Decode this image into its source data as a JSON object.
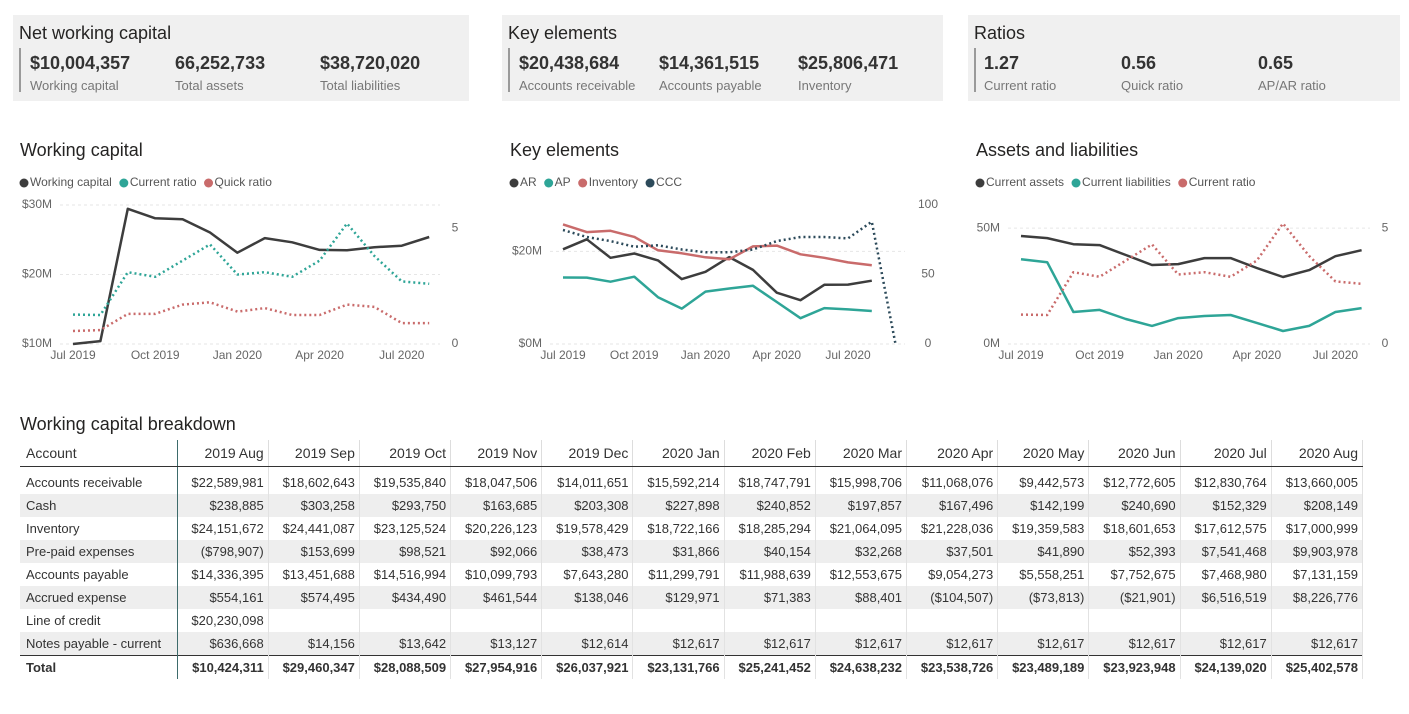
{
  "cards": [
    {
      "title": "Net working capital",
      "items": [
        {
          "value": "$10,004,357",
          "label": "Working capital"
        },
        {
          "value": "66,252,733",
          "label": "Total assets"
        },
        {
          "value": "$38,720,020",
          "label": "Total liabilities"
        }
      ]
    },
    {
      "title": "Key elements",
      "items": [
        {
          "value": "$20,438,684",
          "label": "Accounts receivable"
        },
        {
          "value": "$14,361,515",
          "label": "Accounts payable"
        },
        {
          "value": "$25,806,471",
          "label": "Inventory"
        }
      ]
    },
    {
      "title": "Ratios",
      "items": [
        {
          "value": "1.27",
          "label": "Current ratio"
        },
        {
          "value": "0.56",
          "label": "Quick ratio"
        },
        {
          "value": "0.65",
          "label": "AP/AR ratio"
        }
      ]
    }
  ],
  "chart_data": [
    {
      "type": "line",
      "title": "Working capital",
      "categories": [
        "Jul 2019",
        null,
        null,
        "Oct 2019",
        null,
        null,
        "Jan 2020",
        null,
        null,
        "Apr 2020",
        null,
        null,
        "Jul 2020",
        null
      ],
      "series": [
        {
          "name": "Working capital",
          "color": "#3d3d3d",
          "line_style": "solid",
          "values": [
            10004357,
            10424311,
            29460347,
            28088509,
            27954916,
            26037921,
            23131766,
            25241452,
            24638232,
            23538726,
            23489189,
            23923948,
            24139020,
            25402578
          ]
        },
        {
          "name": "Current ratio",
          "color": "#2ea597",
          "line_style": "dotted",
          "axis": "y2",
          "values": [
            1.27,
            1.25,
            3.1,
            2.9,
            3.6,
            4.3,
            3.0,
            3.1,
            2.9,
            3.6,
            5.2,
            3.8,
            2.7,
            2.6
          ]
        },
        {
          "name": "Quick ratio",
          "color": "#c96b6b",
          "line_style": "dotted",
          "axis": "y2",
          "values": [
            0.56,
            0.6,
            1.3,
            1.3,
            1.7,
            1.8,
            1.4,
            1.55,
            1.25,
            1.25,
            1.7,
            1.6,
            0.9,
            0.9
          ]
        }
      ],
      "ylim": [
        10000000,
        30000000
      ],
      "yticks": [
        {
          "value": 10000000,
          "label": "$10M"
        },
        {
          "value": 20000000,
          "label": "$20M"
        },
        {
          "value": 30000000,
          "label": "$30M"
        }
      ],
      "y2lim": [
        0,
        6
      ],
      "y2ticks": [
        0,
        5
      ],
      "grid": true,
      "legend": "top-left"
    },
    {
      "type": "line",
      "title": "Key elements",
      "categories": [
        "Jul 2019",
        null,
        null,
        "Oct 2019",
        null,
        null,
        "Jan 2020",
        null,
        null,
        "Apr 2020",
        null,
        null,
        "Jul 2020",
        null,
        null
      ],
      "series": [
        {
          "name": "AR",
          "color": "#3d3d3d",
          "line_style": "solid",
          "values": [
            20438684,
            22589981,
            18602643,
            19535840,
            18047506,
            14011651,
            15592214,
            18747791,
            15998706,
            11068076,
            9442573,
            12772605,
            12830764,
            13660005,
            null
          ]
        },
        {
          "name": "AP",
          "color": "#2ea597",
          "line_style": "solid",
          "values": [
            14361515,
            14336395,
            13451688,
            14516994,
            10099793,
            7643280,
            11299791,
            11988639,
            12553675,
            9054273,
            5558251,
            7752675,
            7468980,
            7131159,
            null
          ]
        },
        {
          "name": "Inventory",
          "color": "#c96b6b",
          "line_style": "solid",
          "values": [
            25806471,
            24151672,
            24441087,
            23125524,
            20226123,
            19578429,
            18722166,
            18285294,
            21064095,
            21228036,
            19359583,
            18601653,
            17612575,
            17000999,
            null
          ]
        },
        {
          "name": "CCC",
          "color": "#2c4a5a",
          "line_style": "dotted",
          "axis": "y2",
          "values": [
            82,
            77,
            74,
            70,
            71,
            68,
            66,
            66,
            68,
            74,
            77,
            77,
            76,
            88,
            0
          ]
        }
      ],
      "ylim": [
        0,
        30000000
      ],
      "yticks": [
        {
          "value": 0,
          "label": "$0M"
        },
        {
          "value": 20000000,
          "label": "$20M"
        }
      ],
      "y2lim": [
        0,
        100
      ],
      "y2ticks": [
        0,
        50,
        100
      ],
      "grid": true,
      "legend": "top-left"
    },
    {
      "type": "line",
      "title": "Assets and liabilities",
      "categories": [
        "Jul 2019",
        null,
        null,
        "Oct 2019",
        null,
        null,
        "Jan 2020",
        null,
        null,
        "Apr 2020",
        null,
        null,
        "Jul 2020",
        null
      ],
      "series": [
        {
          "name": "Current assets",
          "color": "#3d3d3d",
          "line_style": "solid",
          "values": [
            46600000,
            45700000,
            43100000,
            42700000,
            38400000,
            34100000,
            34500000,
            37100000,
            37100000,
            32800000,
            28900000,
            31900000,
            37900000,
            40500000
          ]
        },
        {
          "name": "Current liabilities",
          "color": "#2ea597",
          "line_style": "solid",
          "values": [
            36600000,
            35300000,
            13800000,
            14700000,
            10800000,
            7800000,
            11200000,
            12100000,
            12500000,
            9100000,
            5600000,
            7800000,
            13800000,
            15500000
          ]
        },
        {
          "name": "Current ratio",
          "color": "#c96b6b",
          "line_style": "dotted",
          "axis": "y2",
          "values": [
            1.27,
            1.25,
            3.1,
            2.9,
            3.6,
            4.3,
            3.0,
            3.1,
            2.9,
            3.6,
            5.2,
            3.8,
            2.7,
            2.6
          ]
        }
      ],
      "ylim": [
        0,
        60000000
      ],
      "yticks": [
        {
          "value": 0,
          "label": "0M"
        },
        {
          "value": 50000000,
          "label": "50M"
        }
      ],
      "y2lim": [
        0,
        6
      ],
      "y2ticks": [
        0,
        5
      ],
      "grid": true,
      "legend": "top-left"
    }
  ],
  "table": {
    "title": "Working capital breakdown",
    "columns": [
      "Account",
      "2019 Aug",
      "2019 Sep",
      "2019 Oct",
      "2019 Nov",
      "2019 Dec",
      "2020 Jan",
      "2020 Feb",
      "2020 Mar",
      "2020 Apr",
      "2020 May",
      "2020 Jun",
      "2020 Jul",
      "2020 Aug"
    ],
    "rows": [
      [
        "Accounts receivable",
        "$22,589,981",
        "$18,602,643",
        "$19,535,840",
        "$18,047,506",
        "$14,011,651",
        "$15,592,214",
        "$18,747,791",
        "$15,998,706",
        "$11,068,076",
        "$9,442,573",
        "$12,772,605",
        "$12,830,764",
        "$13,660,005"
      ],
      [
        "Cash",
        "$238,885",
        "$303,258",
        "$293,750",
        "$163,685",
        "$203,308",
        "$227,898",
        "$240,852",
        "$197,857",
        "$167,496",
        "$142,199",
        "$240,690",
        "$152,329",
        "$208,149"
      ],
      [
        "Inventory",
        "$24,151,672",
        "$24,441,087",
        "$23,125,524",
        "$20,226,123",
        "$19,578,429",
        "$18,722,166",
        "$18,285,294",
        "$21,064,095",
        "$21,228,036",
        "$19,359,583",
        "$18,601,653",
        "$17,612,575",
        "$17,000,999"
      ],
      [
        "Pre-paid expenses",
        "($798,907)",
        "$153,699",
        "$98,521",
        "$92,066",
        "$38,473",
        "$31,866",
        "$40,154",
        "$32,268",
        "$37,501",
        "$41,890",
        "$52,393",
        "$7,541,468",
        "$9,903,978"
      ],
      [
        "Accounts payable",
        "$14,336,395",
        "$13,451,688",
        "$14,516,994",
        "$10,099,793",
        "$7,643,280",
        "$11,299,791",
        "$11,988,639",
        "$12,553,675",
        "$9,054,273",
        "$5,558,251",
        "$7,752,675",
        "$7,468,980",
        "$7,131,159"
      ],
      [
        "Accrued expense",
        "$554,161",
        "$574,495",
        "$434,490",
        "$461,544",
        "$138,046",
        "$129,971",
        "$71,383",
        "$88,401",
        "($104,507)",
        "($73,813)",
        "($21,901)",
        "$6,516,519",
        "$8,226,776"
      ],
      [
        "Line of credit",
        "$20,230,098"
      ],
      [
        "Notes payable - current",
        "$636,668",
        "$14,156",
        "$13,642",
        "$13,127",
        "$12,614",
        "$12,617",
        "$12,617",
        "$12,617",
        "$12,617",
        "$12,617",
        "$12,617",
        "$12,617",
        "$12,617"
      ]
    ],
    "total": [
      "Total",
      "$10,424,311",
      "$29,460,347",
      "$28,088,509",
      "$27,954,916",
      "$26,037,921",
      "$23,131,766",
      "$25,241,452",
      "$24,638,232",
      "$23,538,726",
      "$23,489,189",
      "$23,923,948",
      "$24,139,020",
      "$25,402,578"
    ]
  }
}
